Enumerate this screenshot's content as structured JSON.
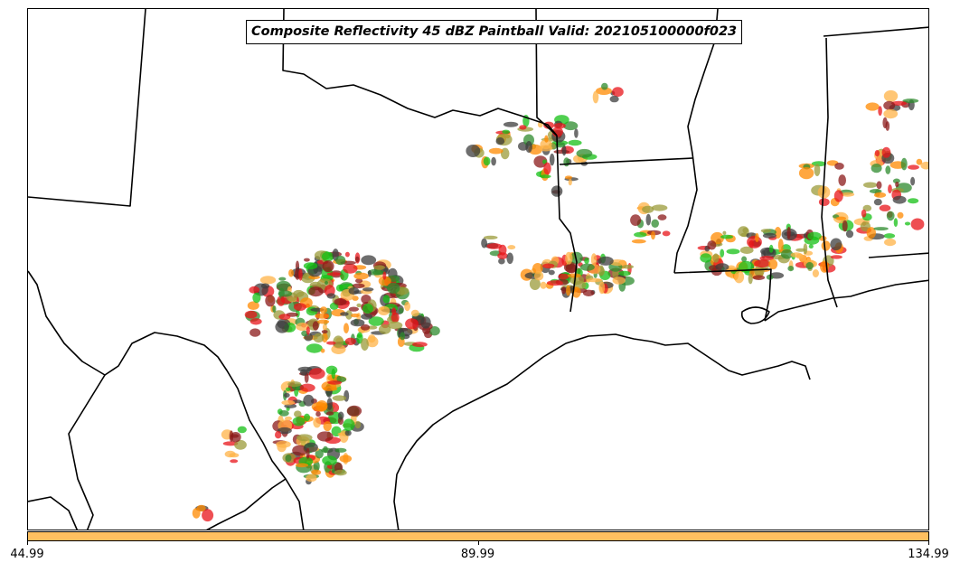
{
  "map": {
    "title": "Composite Reflectivity 45 dBZ Paintball Valid: 202105100000f023",
    "member_colors": [
      "#e8141a",
      "#8b1a1a",
      "#ff8a00",
      "#ffb347",
      "#9b9b3a",
      "#2e8b2e",
      "#16c016",
      "#3d3d3d"
    ],
    "boundary_color": "#000000",
    "background_color": "#ffffff"
  },
  "colorbar": {
    "color": "#ffc060",
    "ticks": [
      {
        "label": "44.99",
        "position": 0.0
      },
      {
        "label": "89.99",
        "position": 0.5
      },
      {
        "label": "134.99",
        "position": 1.0
      }
    ]
  }
}
